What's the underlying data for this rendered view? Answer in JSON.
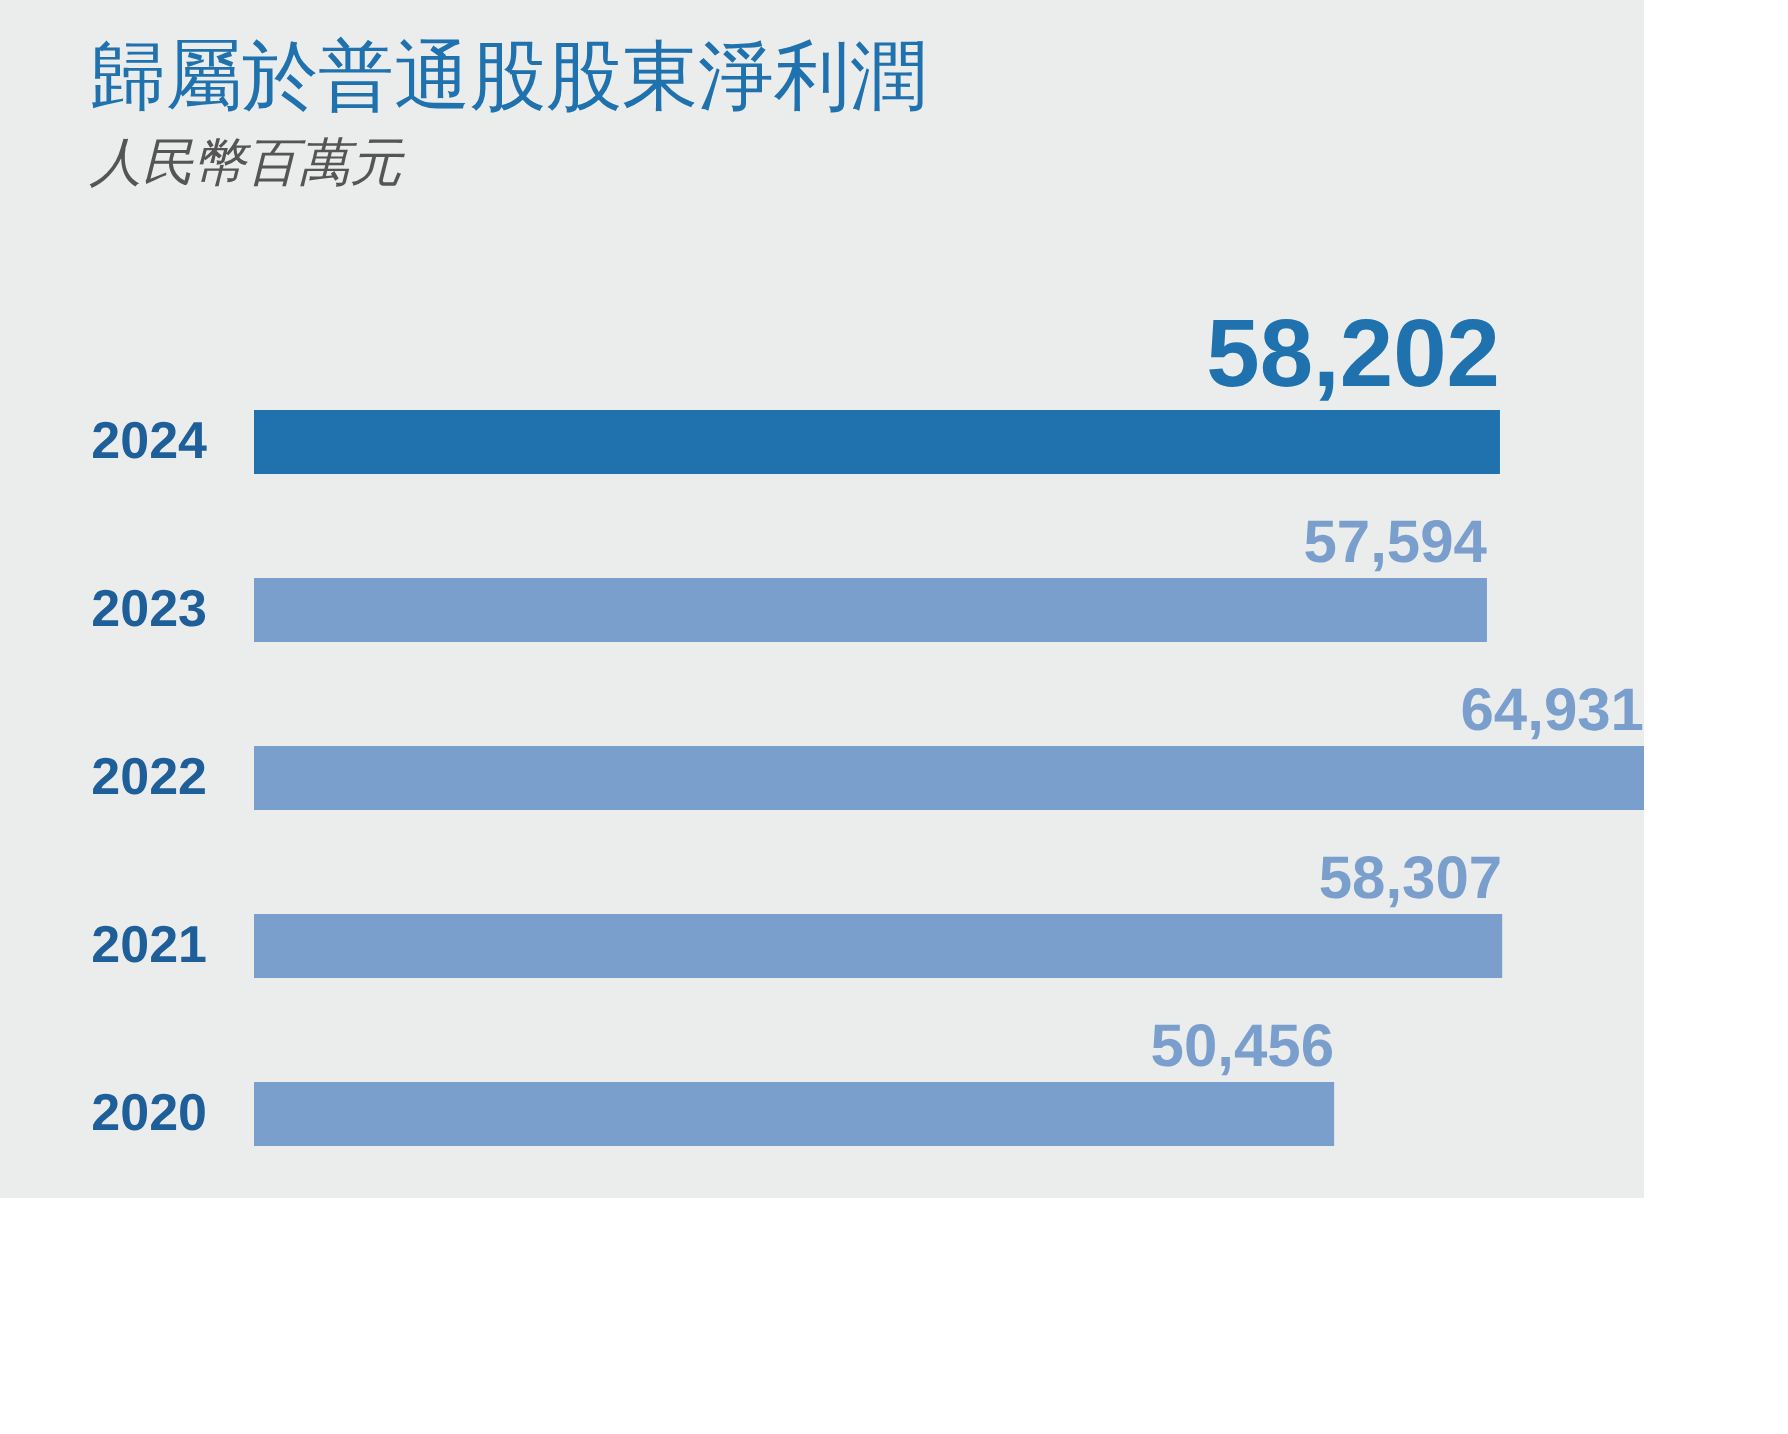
{
  "chart_data": {
    "type": "bar",
    "orientation": "horizontal",
    "title": "歸屬於普通股股東淨利潤",
    "subtitle": "人民幣百萬元",
    "categories": [
      "2024",
      "2023",
      "2022",
      "2021",
      "2020"
    ],
    "values": [
      58202,
      57594,
      64931,
      58307,
      50456
    ],
    "colors": [
      "#1f72ae",
      "#7a9fcc",
      "#7a9fcc",
      "#7a9fcc",
      "#7a9fcc"
    ],
    "value_labels": [
      "58,202",
      "57,594",
      "64,931",
      "58,307",
      "50,456"
    ]
  }
}
